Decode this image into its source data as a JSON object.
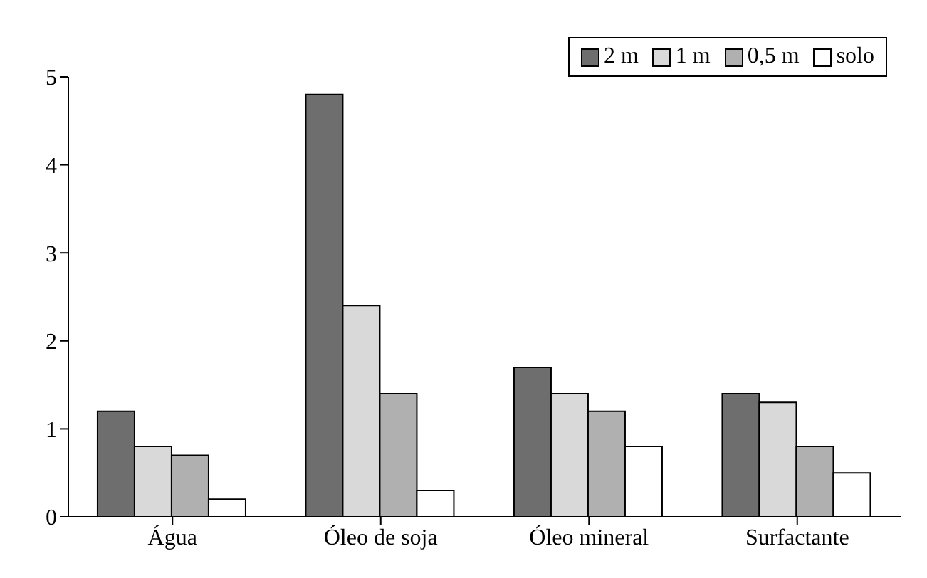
{
  "chart_data": {
    "type": "bar",
    "categories": [
      "Água",
      "Óleo de soja",
      "Óleo mineral",
      "Surfactante"
    ],
    "series": [
      {
        "name": "2 m",
        "color": "#6e6e6e",
        "values": [
          1.2,
          4.8,
          1.7,
          1.4
        ]
      },
      {
        "name": "1 m",
        "color": "#d9d9d9",
        "values": [
          0.8,
          2.4,
          1.4,
          1.3
        ]
      },
      {
        "name": "0,5 m",
        "color": "#b0b0b0",
        "values": [
          0.7,
          1.4,
          1.2,
          0.8
        ]
      },
      {
        "name": "solo",
        "color": "#ffffff",
        "values": [
          0.2,
          0.3,
          0.8,
          0.5
        ]
      }
    ],
    "ylim": [
      0,
      5
    ],
    "yticks": [
      0,
      1,
      2,
      3,
      4,
      5
    ],
    "grid": false,
    "legend": "top right"
  }
}
